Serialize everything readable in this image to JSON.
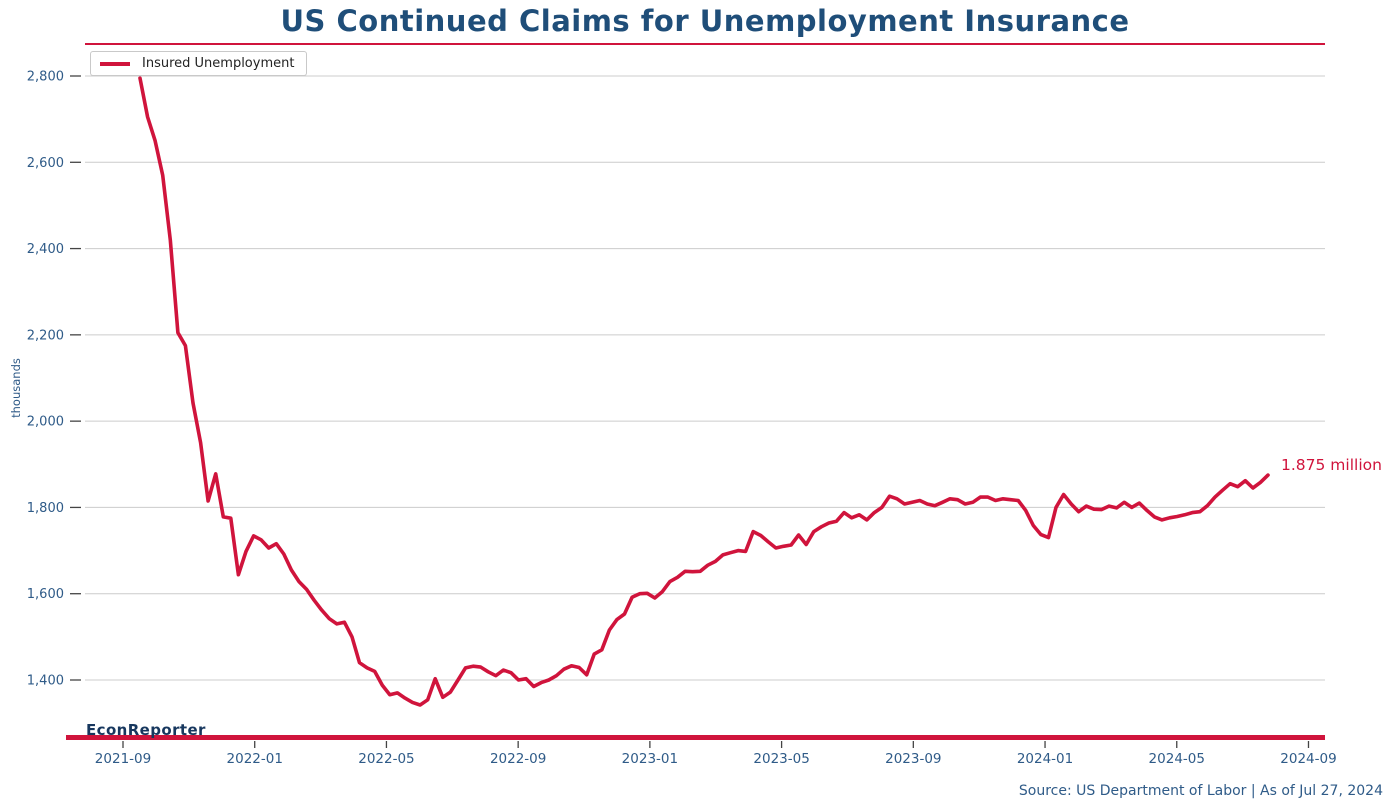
{
  "title": "US Continued Claims for Unemployment Insurance",
  "legend": {
    "label": "Insured Unemployment"
  },
  "annotation": {
    "label": "1.875 million"
  },
  "watermark": "EconReporter",
  "source": "Source: US Department of Labor | As of Jul 27, 2024",
  "colors": {
    "line": "#D0143C",
    "accent_rule": "#D0143C",
    "title_text": "#1F4E79",
    "axis_text": "#2F5B88",
    "grid": "#CCCCCC",
    "tick": "#444444",
    "watermark_text": "#17375E",
    "legend_text": "#222222",
    "background": "#FFFFFF"
  },
  "chart_data": {
    "type": "line",
    "title": "US Continued Claims for Unemployment Insurance",
    "xlabel": "",
    "ylabel": "thousands",
    "grid": true,
    "legend_position": "upper left",
    "ylim": [
      1270,
      2845
    ],
    "yticks": [
      1400,
      1600,
      1800,
      2000,
      2200,
      2400,
      2600,
      2800
    ],
    "ytick_labels": [
      "1,400",
      "1,600",
      "1,800",
      "2,000",
      "2,200",
      "2,400",
      "2,600",
      "2,800"
    ],
    "xtick_labels": [
      "2021-09",
      "2022-01",
      "2022-05",
      "2022-09",
      "2023-01",
      "2023-05",
      "2023-09",
      "2024-01",
      "2024-05",
      "2024-09"
    ],
    "last_value_label": "1.875 million",
    "x": [
      "2021-09-18",
      "2021-09-25",
      "2021-10-02",
      "2021-10-09",
      "2021-10-16",
      "2021-10-23",
      "2021-10-30",
      "2021-11-06",
      "2021-11-13",
      "2021-11-20",
      "2021-11-27",
      "2021-12-04",
      "2021-12-11",
      "2021-12-18",
      "2021-12-25",
      "2022-01-01",
      "2022-01-08",
      "2022-01-15",
      "2022-01-22",
      "2022-01-29",
      "2022-02-05",
      "2022-02-12",
      "2022-02-19",
      "2022-02-26",
      "2022-03-05",
      "2022-03-12",
      "2022-03-19",
      "2022-03-26",
      "2022-04-02",
      "2022-04-09",
      "2022-04-16",
      "2022-04-23",
      "2022-04-30",
      "2022-05-07",
      "2022-05-14",
      "2022-05-21",
      "2022-05-28",
      "2022-06-04",
      "2022-06-11",
      "2022-06-18",
      "2022-06-25",
      "2022-07-02",
      "2022-07-09",
      "2022-07-16",
      "2022-07-23",
      "2022-07-30",
      "2022-08-06",
      "2022-08-13",
      "2022-08-20",
      "2022-08-27",
      "2022-09-03",
      "2022-09-10",
      "2022-09-17",
      "2022-09-24",
      "2022-10-01",
      "2022-10-08",
      "2022-10-15",
      "2022-10-22",
      "2022-10-29",
      "2022-11-05",
      "2022-11-12",
      "2022-11-19",
      "2022-11-26",
      "2022-12-03",
      "2022-12-10",
      "2022-12-17",
      "2022-12-24",
      "2022-12-31",
      "2023-01-07",
      "2023-01-14",
      "2023-01-21",
      "2023-01-28",
      "2023-02-04",
      "2023-02-11",
      "2023-02-18",
      "2023-02-25",
      "2023-03-04",
      "2023-03-11",
      "2023-03-18",
      "2023-03-25",
      "2023-04-01",
      "2023-04-08",
      "2023-04-15",
      "2023-04-22",
      "2023-04-29",
      "2023-05-06",
      "2023-05-13",
      "2023-05-20",
      "2023-05-27",
      "2023-06-03",
      "2023-06-10",
      "2023-06-17",
      "2023-06-24",
      "2023-07-01",
      "2023-07-08",
      "2023-07-15",
      "2023-07-22",
      "2023-07-29",
      "2023-08-05",
      "2023-08-12",
      "2023-08-19",
      "2023-08-26",
      "2023-09-02",
      "2023-09-09",
      "2023-09-16",
      "2023-09-23",
      "2023-09-30",
      "2023-10-07",
      "2023-10-14",
      "2023-10-21",
      "2023-10-28",
      "2023-11-04",
      "2023-11-11",
      "2023-11-18",
      "2023-11-25",
      "2023-12-02",
      "2023-12-09",
      "2023-12-16",
      "2023-12-23",
      "2023-12-30",
      "2024-01-06",
      "2024-01-13",
      "2024-01-20",
      "2024-01-27",
      "2024-02-03",
      "2024-02-10",
      "2024-02-17",
      "2024-02-24",
      "2024-03-02",
      "2024-03-09",
      "2024-03-16",
      "2024-03-23",
      "2024-03-30",
      "2024-04-06",
      "2024-04-13",
      "2024-04-20",
      "2024-04-27",
      "2024-05-04",
      "2024-05-11",
      "2024-05-18",
      "2024-05-25",
      "2024-06-01",
      "2024-06-08",
      "2024-06-15",
      "2024-06-22",
      "2024-06-29",
      "2024-07-06",
      "2024-07-13",
      "2024-07-20",
      "2024-07-27"
    ],
    "series": [
      {
        "name": "Insured Unemployment",
        "color": "#D0143C",
        "values": [
          2795,
          2705,
          2650,
          2570,
          2420,
          2205,
          2175,
          2042,
          1950,
          1815,
          1878,
          1778,
          1775,
          1644,
          1698,
          1734,
          1725,
          1706,
          1716,
          1692,
          1655,
          1628,
          1610,
          1585,
          1562,
          1542,
          1530,
          1534,
          1500,
          1440,
          1428,
          1420,
          1388,
          1366,
          1370,
          1358,
          1348,
          1342,
          1354,
          1403,
          1360,
          1372,
          1400,
          1428,
          1432,
          1430,
          1419,
          1410,
          1423,
          1417,
          1400,
          1403,
          1385,
          1394,
          1400,
          1410,
          1425,
          1433,
          1429,
          1412,
          1460,
          1470,
          1516,
          1540,
          1553,
          1592,
          1600,
          1601,
          1590,
          1605,
          1628,
          1638,
          1652,
          1651,
          1652,
          1666,
          1675,
          1690,
          1695,
          1700,
          1698,
          1744,
          1735,
          1720,
          1706,
          1710,
          1713,
          1736,
          1714,
          1744,
          1755,
          1764,
          1768,
          1788,
          1776,
          1783,
          1771,
          1788,
          1800,
          1826,
          1820,
          1808,
          1812,
          1816,
          1808,
          1804,
          1812,
          1820,
          1818,
          1808,
          1812,
          1824,
          1824,
          1816,
          1820,
          1818,
          1816,
          1793,
          1758,
          1737,
          1730,
          1800,
          1830,
          1808,
          1790,
          1803,
          1796,
          1795,
          1803,
          1799,
          1812,
          1800,
          1810,
          1793,
          1778,
          1771,
          1776,
          1779,
          1783,
          1788,
          1790,
          1804,
          1824,
          1840,
          1855,
          1848,
          1862,
          1845,
          1858,
          1875
        ]
      }
    ]
  }
}
